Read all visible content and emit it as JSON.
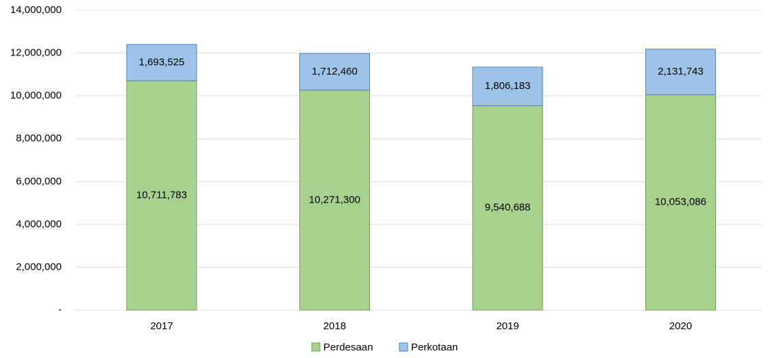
{
  "chart_data": {
    "type": "bar",
    "stacked": true,
    "categories": [
      "2017",
      "2018",
      "2019",
      "2020"
    ],
    "series": [
      {
        "name": "Perdesaan",
        "color": "#a9d18e",
        "values": [
          10711783,
          10271300,
          9540688,
          10053086
        ],
        "value_labels": [
          "10,711,783",
          "10,271,300",
          "9,540,688",
          "10,053,086"
        ]
      },
      {
        "name": "Perkotaan",
        "color": "#9dc3e6",
        "values": [
          1693525,
          1712460,
          1806183,
          2131743
        ],
        "value_labels": [
          "1,693,525",
          "1,712,460",
          "1,806,183",
          "2,131,743"
        ]
      }
    ],
    "ylim": [
      0,
      14000000
    ],
    "yticks": [
      {
        "value": 0,
        "label": "-"
      },
      {
        "value": 2000000,
        "label": "2,000,000"
      },
      {
        "value": 4000000,
        "label": "4,000,000"
      },
      {
        "value": 6000000,
        "label": "6,000,000"
      },
      {
        "value": 8000000,
        "label": "8,000,000"
      },
      {
        "value": 10000000,
        "label": "10,000,000"
      },
      {
        "value": 12000000,
        "label": "12,000,000"
      },
      {
        "value": 14000000,
        "label": "14,000,000"
      }
    ],
    "grid": true,
    "legend": "bottom"
  }
}
